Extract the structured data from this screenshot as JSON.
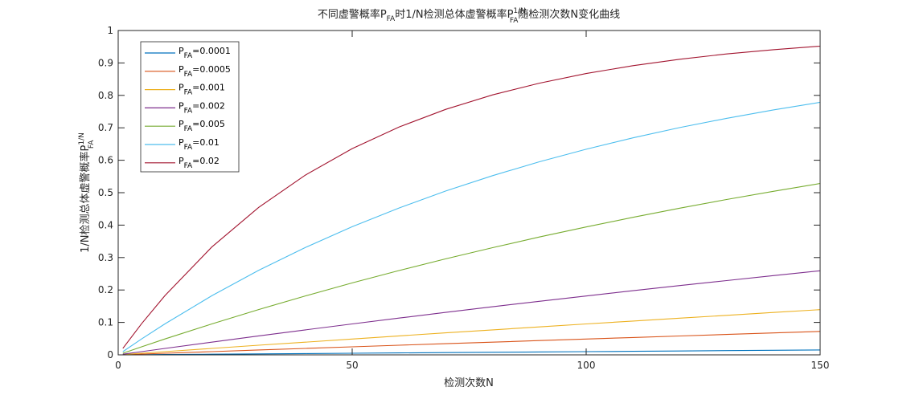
{
  "chart_data": {
    "type": "line",
    "title": {
      "part1": "不同虚警概率P",
      "sub1": "FA",
      "part2": "时1/N检测总体虚警概率P",
      "sup": "1/N",
      "sub2": "FA",
      "part3": "随检测次数N变化曲线"
    },
    "xlabel": "检测次数N",
    "ylabel": {
      "main": "1/N检测总体虚警概率P",
      "sup": "1/N",
      "sub": "FA"
    },
    "xlim": [
      0,
      150
    ],
    "ylim": [
      0,
      1
    ],
    "xticks": [
      0,
      50,
      100,
      150
    ],
    "xtick_labels": [
      "0",
      "50",
      "100",
      "150"
    ],
    "yticks": [
      0,
      0.1,
      0.2,
      0.3,
      0.4,
      0.5,
      0.6,
      0.7,
      0.8,
      0.9,
      1
    ],
    "ytick_labels": [
      "0",
      "0.1",
      "0.2",
      "0.3",
      "0.4",
      "0.5",
      "0.6",
      "0.7",
      "0.8",
      "0.9",
      "1"
    ],
    "grid": false,
    "legend_position": "top-left",
    "x": [
      1,
      5,
      10,
      20,
      30,
      40,
      50,
      60,
      70,
      80,
      90,
      100,
      110,
      120,
      130,
      140,
      150
    ],
    "series": [
      {
        "name_prefix": "P",
        "name_sub": "FA",
        "name_suffix": "=0.0001",
        "color": "#0072bd",
        "values": [
          0.0001,
          0.0005,
          0.001,
          0.002,
          0.003,
          0.004,
          0.005,
          0.006,
          0.007,
          0.008,
          0.009,
          0.01,
          0.011,
          0.012,
          0.013,
          0.014,
          0.015
        ]
      },
      {
        "name_prefix": "P",
        "name_sub": "FA",
        "name_suffix": "=0.0005",
        "color": "#d95319",
        "values": [
          0.0005,
          0.0025,
          0.005,
          0.01,
          0.015,
          0.0198,
          0.0247,
          0.0296,
          0.0344,
          0.0392,
          0.044,
          0.0488,
          0.0535,
          0.0582,
          0.0629,
          0.0676,
          0.0723
        ]
      },
      {
        "name_prefix": "P",
        "name_sub": "FA",
        "name_suffix": "=0.001",
        "color": "#edb120",
        "values": [
          0.001,
          0.005,
          0.01,
          0.0198,
          0.0296,
          0.0392,
          0.0488,
          0.0583,
          0.0677,
          0.0769,
          0.0861,
          0.0952,
          0.1042,
          0.1131,
          0.1219,
          0.1306,
          0.1393
        ]
      },
      {
        "name_prefix": "P",
        "name_sub": "FA",
        "name_suffix": "=0.002",
        "color": "#7e2f8e",
        "values": [
          0.002,
          0.01,
          0.0198,
          0.0392,
          0.0583,
          0.0769,
          0.0953,
          0.1133,
          0.1309,
          0.1482,
          0.1652,
          0.1814,
          0.1978,
          0.2135,
          0.229,
          0.2442,
          0.2591
        ]
      },
      {
        "name_prefix": "P",
        "name_sub": "FA",
        "name_suffix": "=0.005",
        "color": "#77ac30",
        "values": [
          0.005,
          0.0248,
          0.0489,
          0.0954,
          0.1396,
          0.1817,
          0.2217,
          0.2598,
          0.296,
          0.3305,
          0.3633,
          0.3942,
          0.4241,
          0.4522,
          0.4789,
          0.5043,
          0.5284
        ]
      },
      {
        "name_prefix": "P",
        "name_sub": "FA",
        "name_suffix": "=0.01",
        "color": "#4dbeee",
        "values": [
          0.01,
          0.049,
          0.0956,
          0.1821,
          0.2603,
          0.331,
          0.395,
          0.4528,
          0.5052,
          0.5525,
          0.5953,
          0.634,
          0.669,
          0.7007,
          0.7293,
          0.7552,
          0.7787
        ]
      },
      {
        "name_prefix": "P",
        "name_sub": "FA",
        "name_suffix": "=0.02",
        "color": "#a2142f",
        "values": [
          0.02,
          0.0961,
          0.1829,
          0.3324,
          0.4545,
          0.5543,
          0.6358,
          0.7024,
          0.7569,
          0.8014,
          0.8377,
          0.8674,
          0.8917,
          0.9115,
          0.9277,
          0.9409,
          0.9517
        ]
      }
    ]
  }
}
